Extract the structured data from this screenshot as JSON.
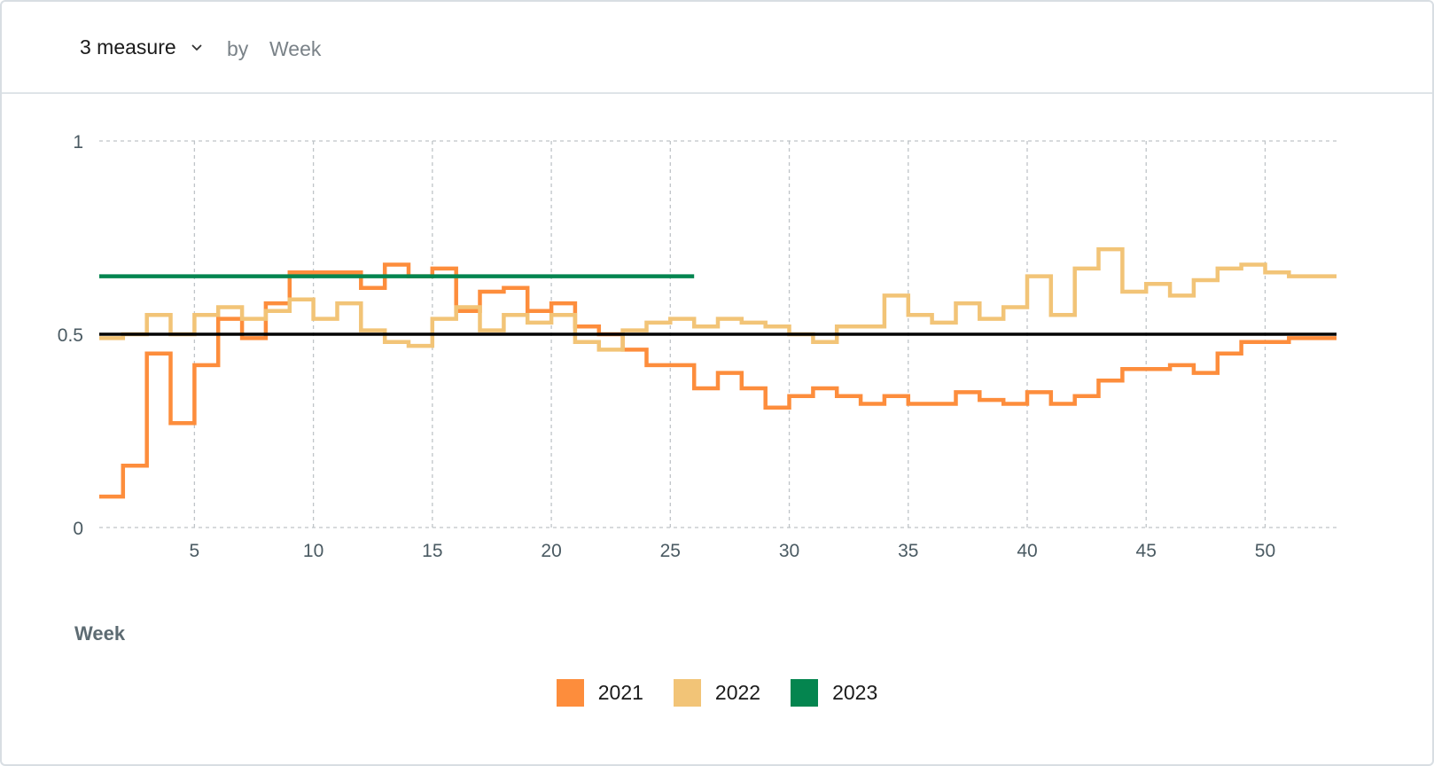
{
  "toolbar": {
    "measure_label": "3 measure",
    "by_label": "by",
    "dimension_label": "Week"
  },
  "colors": {
    "s2021": "#fd8d3c",
    "s2022": "#f2c477",
    "s2023": "#04854f",
    "reference": "#000000",
    "grid": "#bfc4c8",
    "tick_text": "#4a5a62"
  },
  "chart_data": {
    "type": "line",
    "line_shape": "step",
    "xlabel": "Week",
    "ylabel": "",
    "xlim": [
      1,
      52
    ],
    "ylim": [
      0,
      1
    ],
    "x_ticks": [
      5,
      10,
      15,
      20,
      25,
      30,
      35,
      40,
      45,
      50
    ],
    "y_ticks": [
      0,
      0.5,
      1
    ],
    "y_tick_labels": [
      "0",
      "0.5",
      "1"
    ],
    "grid": true,
    "legend_position": "bottom",
    "reference_line": 0.5,
    "series": [
      {
        "name": "2021",
        "color_key": "s2021",
        "x": [
          1,
          2,
          3,
          4,
          5,
          6,
          7,
          8,
          9,
          10,
          11,
          12,
          13,
          14,
          15,
          16,
          17,
          18,
          19,
          20,
          21,
          22,
          23,
          24,
          25,
          26,
          27,
          28,
          29,
          30,
          31,
          32,
          33,
          34,
          35,
          36,
          37,
          38,
          39,
          40,
          41,
          42,
          43,
          44,
          45,
          46,
          47,
          48,
          49,
          50,
          51,
          52
        ],
        "values": [
          0.08,
          0.16,
          0.45,
          0.27,
          0.42,
          0.54,
          0.49,
          0.58,
          0.66,
          0.66,
          0.66,
          0.62,
          0.68,
          0.65,
          0.67,
          0.56,
          0.61,
          0.62,
          0.56,
          0.58,
          0.52,
          0.5,
          0.46,
          0.42,
          0.42,
          0.36,
          0.4,
          0.36,
          0.31,
          0.34,
          0.36,
          0.34,
          0.32,
          0.34,
          0.32,
          0.32,
          0.35,
          0.33,
          0.32,
          0.35,
          0.32,
          0.34,
          0.38,
          0.41,
          0.41,
          0.42,
          0.4,
          0.45,
          0.48,
          0.48,
          0.49,
          0.49
        ]
      },
      {
        "name": "2022",
        "color_key": "s2022",
        "x": [
          1,
          2,
          3,
          4,
          5,
          6,
          7,
          8,
          9,
          10,
          11,
          12,
          13,
          14,
          15,
          16,
          17,
          18,
          19,
          20,
          21,
          22,
          23,
          24,
          25,
          26,
          27,
          28,
          29,
          30,
          31,
          32,
          33,
          34,
          35,
          36,
          37,
          38,
          39,
          40,
          41,
          42,
          43,
          44,
          45,
          46,
          47,
          48,
          49,
          50,
          51,
          52
        ],
        "values": [
          0.49,
          0.5,
          0.55,
          0.5,
          0.55,
          0.57,
          0.54,
          0.56,
          0.59,
          0.54,
          0.58,
          0.51,
          0.48,
          0.47,
          0.54,
          0.57,
          0.51,
          0.55,
          0.53,
          0.55,
          0.48,
          0.46,
          0.51,
          0.53,
          0.54,
          0.52,
          0.54,
          0.53,
          0.52,
          0.5,
          0.48,
          0.52,
          0.52,
          0.6,
          0.55,
          0.53,
          0.58,
          0.54,
          0.57,
          0.65,
          0.55,
          0.67,
          0.72,
          0.61,
          0.63,
          0.6,
          0.64,
          0.67,
          0.68,
          0.66,
          0.65,
          0.65
        ]
      },
      {
        "name": "2023",
        "color_key": "s2023",
        "x": [
          1,
          2,
          3,
          4,
          5,
          6,
          7,
          8,
          9,
          10,
          11,
          12,
          13,
          14,
          15,
          16,
          17,
          18,
          19,
          20,
          21,
          22,
          23,
          24,
          25
        ],
        "values": [
          0.65,
          0.65,
          0.65,
          0.65,
          0.65,
          0.65,
          0.65,
          0.65,
          0.65,
          0.65,
          0.65,
          0.65,
          0.65,
          0.65,
          0.65,
          0.65,
          0.65,
          0.65,
          0.65,
          0.65,
          0.65,
          0.65,
          0.65,
          0.65,
          0.65
        ]
      }
    ]
  }
}
